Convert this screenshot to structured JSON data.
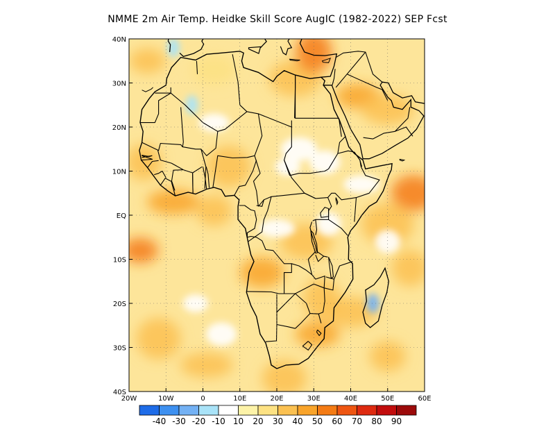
{
  "title": "NMME  2m Air Temp. Heidke Skill Score AugIC (1982-2022) SEP Fcst",
  "map": {
    "lon_range": [
      -20,
      60
    ],
    "lat_range": [
      -40,
      40
    ],
    "lon_ticks": [
      {
        "value": -20,
        "label": "20W"
      },
      {
        "value": -10,
        "label": "10W"
      },
      {
        "value": 0,
        "label": "0"
      },
      {
        "value": 10,
        "label": "10E"
      },
      {
        "value": 20,
        "label": "20E"
      },
      {
        "value": 30,
        "label": "30E"
      },
      {
        "value": 40,
        "label": "40E"
      },
      {
        "value": 50,
        "label": "50E"
      },
      {
        "value": 60,
        "label": "60E"
      }
    ],
    "lat_ticks": [
      {
        "value": 40,
        "label": "40N"
      },
      {
        "value": 30,
        "label": "30N"
      },
      {
        "value": 20,
        "label": "20N"
      },
      {
        "value": 10,
        "label": "10N"
      },
      {
        "value": 0,
        "label": "EQ"
      },
      {
        "value": -10,
        "label": "10S"
      },
      {
        "value": -20,
        "label": "20S"
      },
      {
        "value": -30,
        "label": "30S"
      },
      {
        "value": -40,
        "label": "40S"
      }
    ],
    "gridlines": "dotted",
    "region": "Africa",
    "field_background": "#fde59a",
    "skill_regions": [
      {
        "lon": -15,
        "lat": 35,
        "level": 40
      },
      {
        "lon": 3,
        "lat": 33,
        "level": 30
      },
      {
        "lon": 25,
        "lat": 31,
        "level": 40
      },
      {
        "lon": 30,
        "lat": 37,
        "level": 60
      },
      {
        "lon": 42,
        "lat": 27,
        "level": 50
      },
      {
        "lon": 50,
        "lat": 24,
        "level": 40
      },
      {
        "lon": -16,
        "lat": 12,
        "level": 40
      },
      {
        "lon": 7,
        "lat": 11,
        "level": 40
      },
      {
        "lon": -8,
        "lat": 3,
        "level": 50
      },
      {
        "lon": 3,
        "lat": 1,
        "level": 40
      },
      {
        "lon": 57,
        "lat": 5,
        "level": 60
      },
      {
        "lon": 50,
        "lat": -2,
        "level": 40
      },
      {
        "lon": -17,
        "lat": -8,
        "level": 60
      },
      {
        "lon": 16,
        "lat": -13,
        "level": 50
      },
      {
        "lon": 28,
        "lat": -6,
        "level": 40
      },
      {
        "lon": 32,
        "lat": -19,
        "level": 40
      },
      {
        "lon": 31,
        "lat": -27,
        "level": 50
      },
      {
        "lon": 40,
        "lat": -22,
        "level": 40
      },
      {
        "lon": 56,
        "lat": -12,
        "level": 40
      },
      {
        "lon": -12,
        "lat": -28,
        "level": 40
      },
      {
        "lon": 1,
        "lat": -34,
        "level": 40
      },
      {
        "lon": 50,
        "lat": -32,
        "level": 40
      },
      {
        "lon": 22,
        "lat": -37,
        "level": 40
      }
    ],
    "low_skill_regions": [
      {
        "lon": 23,
        "lat": 11,
        "level": 10
      },
      {
        "lon": 33,
        "lat": 12,
        "level": 10
      },
      {
        "lon": 20,
        "lat": -3,
        "level": 10
      },
      {
        "lon": 34,
        "lat": -2,
        "level": 10
      },
      {
        "lon": 3,
        "lat": 21,
        "level": 10
      },
      {
        "lon": 26,
        "lat": 15,
        "level": 10
      },
      {
        "lon": -2,
        "lat": -20,
        "level": 10
      },
      {
        "lon": 5,
        "lat": -27,
        "level": 10
      },
      {
        "lon": 43,
        "lat": 7,
        "level": 10
      },
      {
        "lon": 50,
        "lat": -6,
        "level": 10
      }
    ],
    "negative_regions": [
      {
        "lon": -3,
        "lat": 25,
        "level": -10
      },
      {
        "lon": -8,
        "lat": 38,
        "level": -10
      },
      {
        "lon": 46,
        "lat": -20,
        "level": -20
      }
    ]
  },
  "colorbar": {
    "bins": [
      {
        "color": "#1e6ce8",
        "label": "-40"
      },
      {
        "color": "#3d90f0",
        "label": "-30"
      },
      {
        "color": "#73b1f4",
        "label": "-20"
      },
      {
        "color": "#a9e3f8",
        "label": "-10"
      },
      {
        "color": "#ffffff",
        "label": "10"
      },
      {
        "color": "#fdf3a8",
        "label": "20"
      },
      {
        "color": "#fde283",
        "label": "30"
      },
      {
        "color": "#fbc151",
        "label": "40"
      },
      {
        "color": "#f9a42a",
        "label": "50"
      },
      {
        "color": "#f47b14",
        "label": "60"
      },
      {
        "color": "#ee5511",
        "label": "70"
      },
      {
        "color": "#de2a10",
        "label": "80"
      },
      {
        "color": "#c20d0d",
        "label": "90"
      },
      {
        "color": "#9c0a0a",
        "label": ""
      }
    ]
  }
}
